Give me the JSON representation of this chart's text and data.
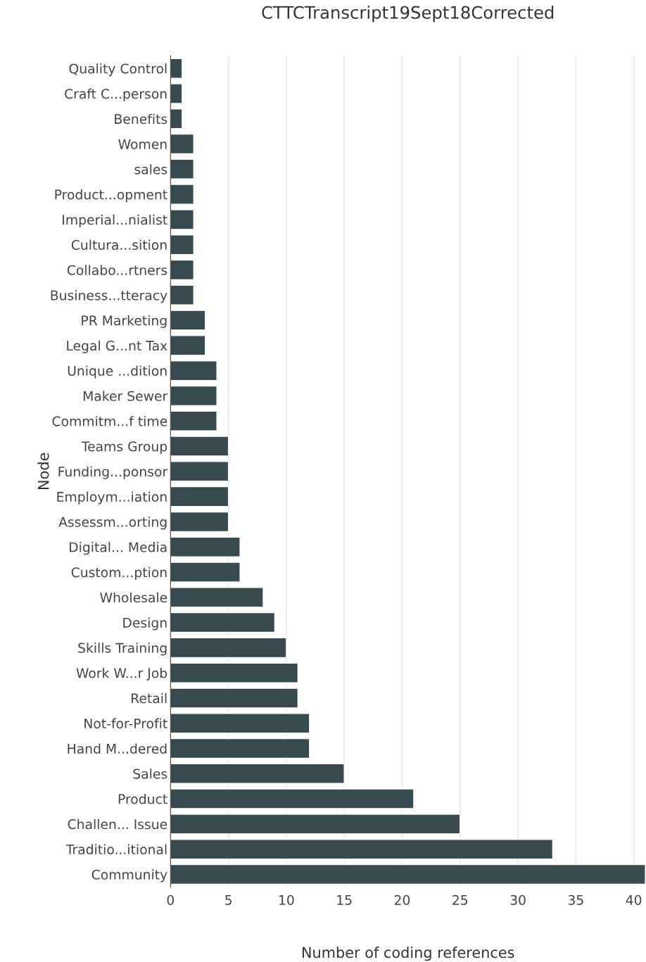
{
  "chart_data": {
    "type": "bar",
    "orientation": "horizontal",
    "title": "CTTCTranscript19Sept18Corrected",
    "xlabel": "Number of coding references",
    "ylabel": "Node",
    "categories": [
      "Quality Control",
      "Craft C...person",
      "Benefits",
      "Women",
      "sales",
      "Product...opment",
      "Imperial...nialist",
      "Cultura...sition",
      "Collabo...rtners",
      "Business...tteracy",
      "PR Marketing",
      "Legal G...nt Tax",
      "Unique ...dition",
      "Maker Sewer",
      "Commitm...f time",
      "Teams Group",
      "Funding...ponsor",
      "Employm...iation",
      "Assessm...orting",
      "Digital... Media",
      "Custom...ption",
      "Wholesale",
      "Design",
      "Skills Training",
      "Work W...r Job",
      "Retail",
      "Not-for-Profit",
      "Hand M...dered",
      "Sales",
      "Product",
      "Challen... Issue",
      "Traditio...itional",
      "Community"
    ],
    "values": [
      1,
      1,
      1,
      2,
      2,
      2,
      2,
      2,
      2,
      2,
      3,
      3,
      4,
      4,
      4,
      5,
      5,
      5,
      5,
      6,
      6,
      8,
      9,
      10,
      11,
      11,
      12,
      12,
      15,
      21,
      25,
      33,
      41
    ],
    "color": "#384a4f",
    "xlim": [
      0,
      41
    ],
    "xticks": [
      0,
      5,
      10,
      15,
      20,
      25,
      30,
      35,
      40
    ],
    "grid": "x"
  }
}
